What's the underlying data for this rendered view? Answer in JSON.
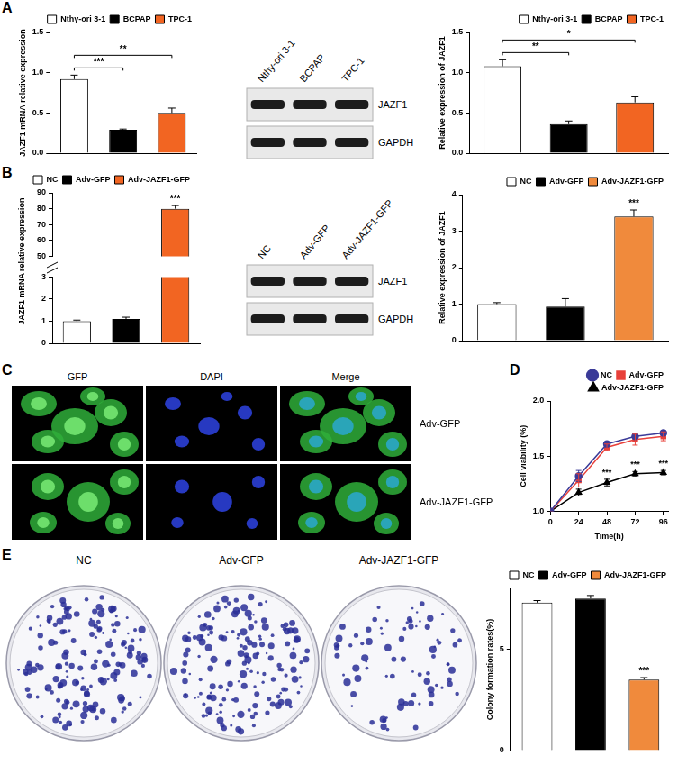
{
  "panel_labels": [
    "A",
    "B",
    "C",
    "D",
    "E"
  ],
  "chart_data": [
    {
      "type": "bar",
      "y_label": "JAZF1 mRNA relative expression",
      "categories": [
        "Nthy-ori 3-1",
        "BCPAP",
        "TPC-1"
      ],
      "values": [
        0.92,
        0.29,
        0.5
      ],
      "errors": [
        0.05,
        0.01,
        0.06
      ],
      "colors": [
        "#ffffff",
        "#000000",
        "#f26522"
      ],
      "ylim": [
        0,
        1.5
      ],
      "yticks": [
        {
          "value": 0,
          "label": "0.0"
        },
        0.5,
        {
          "value": 1,
          "label": "1.0"
        },
        1.5
      ],
      "grid": false,
      "legend": "top-right",
      "tick_labels": "y",
      "annotations": [
        {
          "from": "Nthy-ori 3-1",
          "to": "BCPAP",
          "text": "***"
        },
        {
          "from": "Nthy-ori 3-1",
          "to": "TPC-1",
          "text": "**"
        }
      ]
    },
    {
      "type": "bar",
      "y_label": "Relative expression of JAZF1",
      "categories": [
        "Nthy-ori 3-1",
        "BCPAP",
        "TPC-1"
      ],
      "values": [
        1.08,
        0.36,
        0.63
      ],
      "errors": [
        0.08,
        0.04,
        0.07
      ],
      "colors": [
        "#ffffff",
        "#000000",
        "#f26522"
      ],
      "ylim": [
        0,
        1.5
      ],
      "yticks": [
        {
          "value": 0,
          "label": "0.0"
        },
        0.5,
        {
          "value": 1,
          "label": "1.0"
        },
        1.5
      ],
      "grid": false,
      "legend": "top-right",
      "tick_labels": "y",
      "annotations": [
        {
          "from": "Nthy-ori 3-1",
          "to": "BCPAP",
          "text": "**"
        },
        {
          "from": "Nthy-ori 3-1",
          "to": "TPC-1",
          "text": "*"
        }
      ]
    },
    {
      "type": "bar",
      "y_label": "JAZF1 mRNA relative expression",
      "categories": [
        "NC",
        "Adv-GFP",
        "Adv-JAZF1-GFP"
      ],
      "values": [
        1.0,
        1.1,
        80
      ],
      "errors": [
        0.05,
        0.08,
        2
      ],
      "colors": [
        "#ffffff",
        "#000000",
        "#f26522"
      ],
      "ylim": [
        0,
        90
      ],
      "y_break": [
        3,
        50
      ],
      "yticks": [
        0,
        1,
        2,
        3,
        50,
        60,
        70,
        80,
        90
      ],
      "grid": false,
      "legend": "top-left",
      "tick_labels": "y",
      "annotations": [
        {
          "at": "Adv-JAZF1-GFP",
          "text": "***"
        }
      ]
    },
    {
      "type": "bar",
      "y_label": "Relative expression of JAZF1",
      "categories": [
        "NC",
        "Adv-GFP",
        "Adv-JAZF1-GFP"
      ],
      "values": [
        1.0,
        0.93,
        3.4
      ],
      "errors": [
        0.04,
        0.22,
        0.18
      ],
      "colors": [
        "#ffffff",
        "#000000",
        "#f08a3c"
      ],
      "ylim": [
        0,
        4
      ],
      "yticks": [
        0,
        1,
        2,
        3,
        4
      ],
      "grid": false,
      "legend": "top-right",
      "tick_labels": "y",
      "annotations": [
        {
          "at": "Adv-JAZF1-GFP",
          "text": "***"
        }
      ]
    },
    {
      "type": "line",
      "x_label": "Time(h)",
      "y_label": "Cell viability (%)",
      "x": [
        0,
        24,
        48,
        72,
        96
      ],
      "series": [
        {
          "name": "NC",
          "color": "#3b3b98",
          "marker": "circle",
          "line_style": "solid",
          "values": [
            1.0,
            1.32,
            1.61,
            1.68,
            1.71
          ],
          "errors": [
            0,
            0.05,
            0.02,
            0.02,
            0.02
          ]
        },
        {
          "name": "Adv-GFP",
          "color": "#e8403a",
          "marker": "square",
          "line_style": "solid",
          "values": [
            1.0,
            1.28,
            1.58,
            1.65,
            1.68
          ],
          "errors": [
            0,
            0.06,
            0.03,
            0.05,
            0.04
          ]
        },
        {
          "name": "Adv-JAZF1-GFP",
          "color": "#000000",
          "marker": "triangle",
          "line_style": "solid",
          "values": [
            1.0,
            1.17,
            1.26,
            1.34,
            1.35
          ],
          "errors": [
            0,
            0.03,
            0.03,
            0.02,
            0.02
          ]
        }
      ],
      "xlim": [
        0,
        100
      ],
      "xticks": [
        0,
        24,
        48,
        72,
        96
      ],
      "ylim": [
        1,
        2
      ],
      "yticks": [
        {
          "value": 1,
          "label": "1.0"
        },
        1.5,
        {
          "value": 2,
          "label": "2.0"
        }
      ],
      "grid": false,
      "legend": "top-right",
      "annotations": [
        {
          "series": "Adv-JAZF1-GFP",
          "x": 48,
          "text": "***"
        },
        {
          "series": "Adv-JAZF1-GFP",
          "x": 72,
          "text": "***"
        },
        {
          "series": "Adv-JAZF1-GFP",
          "x": 96,
          "text": "***"
        }
      ]
    },
    {
      "type": "bar",
      "y_label": "Colony formation rates(%)",
      "categories": [
        "NC",
        "Adv-GFP",
        "Adv-JAZF1-GFP"
      ],
      "values": [
        7.3,
        7.5,
        3.5
      ],
      "errors": [
        0.1,
        0.15,
        0.1
      ],
      "colors": [
        "#ffffff",
        "#000000",
        "#f08a3c"
      ],
      "ylim": [
        0,
        8
      ],
      "yticks": [
        0,
        5
      ],
      "grid": false,
      "legend": "top-right",
      "tick_labels": "y",
      "annotations": [
        {
          "at": "Adv-JAZF1-GFP",
          "text": "***"
        }
      ]
    }
  ],
  "blots": [
    {
      "lanes": [
        "Nthy-ori 3-1",
        "BCPAP",
        "TPC-1"
      ],
      "rows": [
        "JAZF1",
        "GAPDH"
      ]
    },
    {
      "lanes": [
        "NC",
        "Adv-GFP",
        "Adv-JAZF1-GFP"
      ],
      "rows": [
        "JAZF1",
        "GAPDH"
      ]
    }
  ],
  "microscopy": {
    "columns": [
      "GFP",
      "DAPI",
      "Merge"
    ],
    "rows": [
      "Adv-GFP",
      "Adv-JAZF1-GFP"
    ]
  },
  "dishes": {
    "labels": [
      "NC",
      "Adv-GFP",
      "Adv-JAZF1-GFP"
    ]
  }
}
